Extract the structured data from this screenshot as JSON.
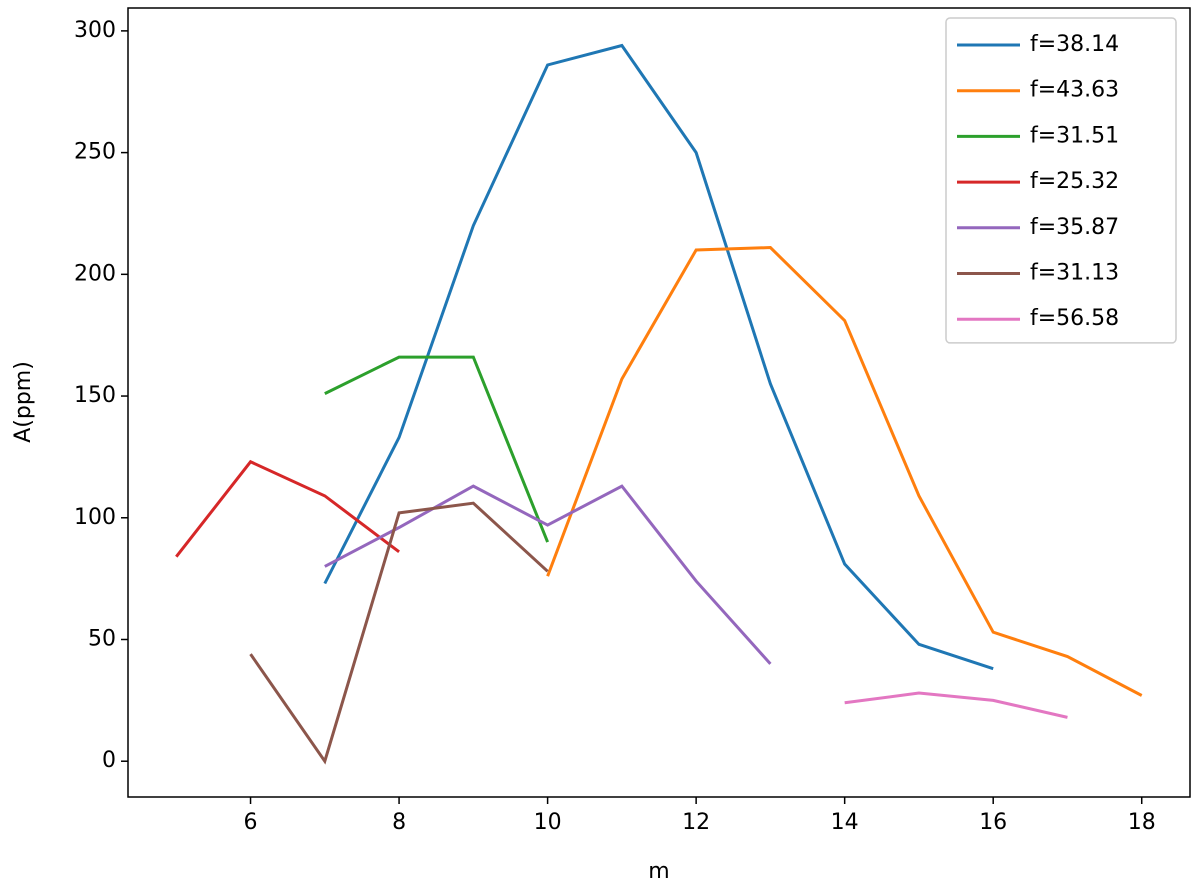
{
  "chart_data": {
    "type": "line",
    "xlabel": "m",
    "ylabel": "A(ppm)",
    "xlim": [
      4.35,
      18.65
    ],
    "ylim": [
      -14.7,
      309.4
    ],
    "xticks": [
      6,
      8,
      10,
      12,
      14,
      16,
      18
    ],
    "yticks": [
      0,
      50,
      100,
      150,
      200,
      250,
      300
    ],
    "legend": "upper right",
    "series": [
      {
        "name": "f=38.14",
        "color": "#1f77b4",
        "x": [
          7,
          8,
          9,
          10,
          11,
          12,
          13,
          14,
          15,
          16
        ],
        "values": [
          73,
          133,
          220,
          286,
          294,
          250,
          155,
          81,
          48,
          38
        ]
      },
      {
        "name": "f=43.63",
        "color": "#ff7f0e",
        "x": [
          10,
          11,
          12,
          13,
          14,
          15,
          16,
          17,
          18
        ],
        "values": [
          76,
          157,
          210,
          211,
          181,
          109,
          53,
          43,
          27
        ]
      },
      {
        "name": "f=31.51",
        "color": "#2ca02c",
        "x": [
          7,
          8,
          9,
          10
        ],
        "values": [
          151,
          166,
          166,
          90
        ]
      },
      {
        "name": "f=25.32",
        "color": "#d62728",
        "x": [
          5,
          6,
          7,
          8
        ],
        "values": [
          84,
          123,
          109,
          86
        ]
      },
      {
        "name": "f=35.87",
        "color": "#9467bd",
        "x": [
          7,
          8,
          9,
          10,
          11,
          12,
          13
        ],
        "values": [
          80,
          96,
          113,
          97,
          113,
          74,
          40
        ]
      },
      {
        "name": "f=31.13",
        "color": "#8c564b",
        "x": [
          6,
          7,
          8,
          9,
          10
        ],
        "values": [
          44,
          0,
          102,
          106,
          78
        ]
      },
      {
        "name": "f=56.58",
        "color": "#e377c2",
        "x": [
          14,
          15,
          16,
          17
        ],
        "values": [
          24,
          28,
          25,
          18
        ]
      }
    ]
  }
}
